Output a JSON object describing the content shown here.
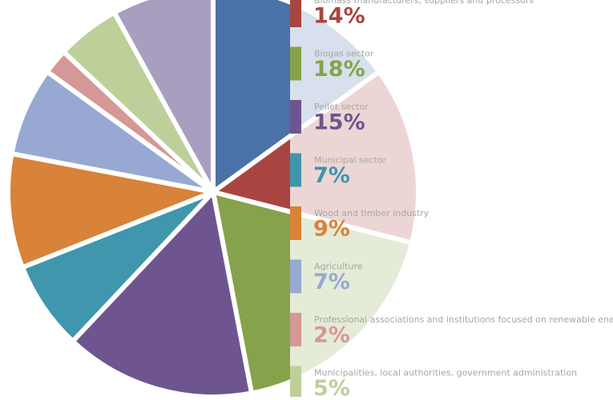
{
  "chart_data": {
    "type": "pie",
    "categories": [
      null,
      "Biomass manufacturers, suppliers and processors",
      "Biogas sector",
      "Pellet sector",
      "Municipal sector",
      "Wood and timber industry",
      "Agriculture",
      "Professional associations and institutions focused on renewable energy",
      "Municipalities, local authorities, government administration",
      null
    ],
    "values": [
      15,
      14,
      18,
      15,
      7,
      9,
      7,
      2,
      5,
      8
    ],
    "value_labels": [
      null,
      "14%",
      "18%",
      "15%",
      "7%",
      "9%",
      "7%",
      "2%",
      "5%",
      null
    ],
    "colors": [
      "#4a72a8",
      "#a84541",
      "#86a24a",
      "#6e558f",
      "#3f96ad",
      "#d8823a",
      "#97a9d3",
      "#d49896",
      "#bdd09a",
      "#a89ebf"
    ],
    "legend": "right"
  }
}
